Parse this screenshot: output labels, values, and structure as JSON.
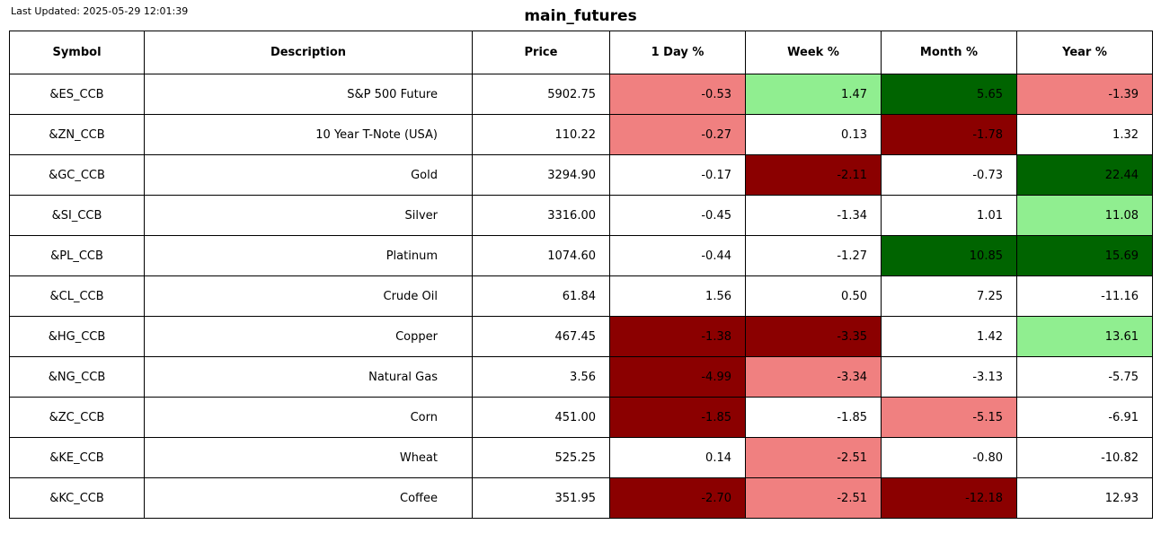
{
  "meta": {
    "last_updated": "Last Updated: 2025-05-29 12:01:39",
    "title": "main_futures"
  },
  "colors": {
    "strong_up": "#006400",
    "up": "#90ee90",
    "down": "#f08080",
    "strong_down": "#8b0000",
    "neutral": "#ffffff"
  },
  "chart_data": {
    "type": "table",
    "title": "main_futures",
    "columns": [
      "Symbol",
      "Description",
      "Price",
      "1 Day %",
      "Week %",
      "Month %",
      "Year %"
    ],
    "rows": [
      {
        "symbol": "&ES_CCB",
        "description": "S&P 500 Future",
        "price": "5902.75",
        "changes": [
          {
            "value": "-0.53",
            "bg": "#f08080"
          },
          {
            "value": "1.47",
            "bg": "#90ee90"
          },
          {
            "value": "5.65",
            "bg": "#006400"
          },
          {
            "value": "-1.39",
            "bg": "#f08080"
          }
        ]
      },
      {
        "symbol": "&ZN_CCB",
        "description": "10 Year T-Note (USA)",
        "price": "110.22",
        "changes": [
          {
            "value": "-0.27",
            "bg": "#f08080"
          },
          {
            "value": "0.13",
            "bg": "#ffffff"
          },
          {
            "value": "-1.78",
            "bg": "#8b0000"
          },
          {
            "value": "1.32",
            "bg": "#ffffff"
          }
        ]
      },
      {
        "symbol": "&GC_CCB",
        "description": "Gold",
        "price": "3294.90",
        "changes": [
          {
            "value": "-0.17",
            "bg": "#ffffff"
          },
          {
            "value": "-2.11",
            "bg": "#8b0000"
          },
          {
            "value": "-0.73",
            "bg": "#ffffff"
          },
          {
            "value": "22.44",
            "bg": "#006400"
          }
        ]
      },
      {
        "symbol": "&SI_CCB",
        "description": "Silver",
        "price": "3316.00",
        "changes": [
          {
            "value": "-0.45",
            "bg": "#ffffff"
          },
          {
            "value": "-1.34",
            "bg": "#ffffff"
          },
          {
            "value": "1.01",
            "bg": "#ffffff"
          },
          {
            "value": "11.08",
            "bg": "#90ee90"
          }
        ]
      },
      {
        "symbol": "&PL_CCB",
        "description": "Platinum",
        "price": "1074.60",
        "changes": [
          {
            "value": "-0.44",
            "bg": "#ffffff"
          },
          {
            "value": "-1.27",
            "bg": "#ffffff"
          },
          {
            "value": "10.85",
            "bg": "#006400"
          },
          {
            "value": "15.69",
            "bg": "#006400"
          }
        ]
      },
      {
        "symbol": "&CL_CCB",
        "description": "Crude Oil",
        "price": "61.84",
        "changes": [
          {
            "value": "1.56",
            "bg": "#ffffff"
          },
          {
            "value": "0.50",
            "bg": "#ffffff"
          },
          {
            "value": "7.25",
            "bg": "#ffffff"
          },
          {
            "value": "-11.16",
            "bg": "#ffffff"
          }
        ]
      },
      {
        "symbol": "&HG_CCB",
        "description": "Copper",
        "price": "467.45",
        "changes": [
          {
            "value": "-1.38",
            "bg": "#8b0000"
          },
          {
            "value": "-3.35",
            "bg": "#8b0000"
          },
          {
            "value": "1.42",
            "bg": "#ffffff"
          },
          {
            "value": "13.61",
            "bg": "#90ee90"
          }
        ]
      },
      {
        "symbol": "&NG_CCB",
        "description": "Natural Gas",
        "price": "3.56",
        "changes": [
          {
            "value": "-4.99",
            "bg": "#8b0000"
          },
          {
            "value": "-3.34",
            "bg": "#f08080"
          },
          {
            "value": "-3.13",
            "bg": "#ffffff"
          },
          {
            "value": "-5.75",
            "bg": "#ffffff"
          }
        ]
      },
      {
        "symbol": "&ZC_CCB",
        "description": "Corn",
        "price": "451.00",
        "changes": [
          {
            "value": "-1.85",
            "bg": "#8b0000"
          },
          {
            "value": "-1.85",
            "bg": "#ffffff"
          },
          {
            "value": "-5.15",
            "bg": "#f08080"
          },
          {
            "value": "-6.91",
            "bg": "#ffffff"
          }
        ]
      },
      {
        "symbol": "&KE_CCB",
        "description": "Wheat",
        "price": "525.25",
        "changes": [
          {
            "value": "0.14",
            "bg": "#ffffff"
          },
          {
            "value": "-2.51",
            "bg": "#f08080"
          },
          {
            "value": "-0.80",
            "bg": "#ffffff"
          },
          {
            "value": "-10.82",
            "bg": "#ffffff"
          }
        ]
      },
      {
        "symbol": "&KC_CCB",
        "description": "Coffee",
        "price": "351.95",
        "changes": [
          {
            "value": "-2.70",
            "bg": "#8b0000"
          },
          {
            "value": "-2.51",
            "bg": "#f08080"
          },
          {
            "value": "-12.18",
            "bg": "#8b0000"
          },
          {
            "value": "12.93",
            "bg": "#ffffff"
          }
        ]
      }
    ]
  }
}
